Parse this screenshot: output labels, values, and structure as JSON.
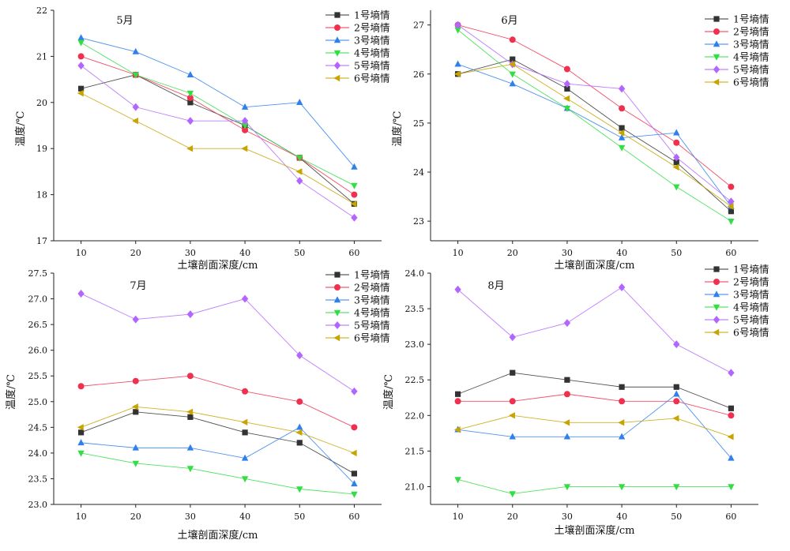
{
  "chart_data": [
    {
      "type": "line",
      "title": "5月",
      "xlabel": "土壤剖面深度/cm",
      "ylabel": "温度/℃",
      "x": [
        10,
        20,
        30,
        40,
        50,
        60
      ],
      "ylim": [
        17,
        22
      ],
      "yticks": [
        "17",
        "18",
        "19",
        "20",
        "21",
        "22"
      ],
      "legend_position": "top-right",
      "series": [
        {
          "name": "1号墒情",
          "color": "#333333",
          "marker": "square",
          "values": [
            20.3,
            20.6,
            20.0,
            19.5,
            18.8,
            17.8
          ]
        },
        {
          "name": "2号墒情",
          "color": "#f0304f",
          "marker": "circle",
          "values": [
            21.0,
            20.6,
            20.1,
            19.4,
            18.8,
            18.0
          ]
        },
        {
          "name": "3号墒情",
          "color": "#2f80ed",
          "marker": "triangle-up",
          "values": [
            21.4,
            21.1,
            20.6,
            19.9,
            20.0,
            18.6
          ]
        },
        {
          "name": "4号墒情",
          "color": "#33dd44",
          "marker": "triangle-down",
          "values": [
            21.3,
            20.6,
            20.2,
            19.5,
            18.8,
            18.2
          ]
        },
        {
          "name": "5号墒情",
          "color": "#b266ff",
          "marker": "diamond",
          "values": [
            20.8,
            19.9,
            19.6,
            19.6,
            18.3,
            17.5
          ]
        },
        {
          "name": "6号墒情",
          "color": "#c8a400",
          "marker": "triangle-left",
          "values": [
            20.2,
            19.6,
            19.0,
            19.0,
            18.5,
            17.8
          ]
        }
      ]
    },
    {
      "type": "line",
      "title": "6月",
      "xlabel": "土壤剖面深度/cm",
      "ylabel": "温度/℃",
      "x": [
        10,
        20,
        30,
        40,
        50,
        60
      ],
      "ylim": [
        22.6,
        27.3
      ],
      "yticks": [
        "23",
        "24",
        "25",
        "26",
        "27"
      ],
      "legend_position": "top-right",
      "series": [
        {
          "name": "1号墒情",
          "color": "#333333",
          "marker": "square",
          "values": [
            26.0,
            26.3,
            25.7,
            24.9,
            24.2,
            23.2
          ]
        },
        {
          "name": "2号墒情",
          "color": "#f0304f",
          "marker": "circle",
          "values": [
            27.0,
            26.7,
            26.1,
            25.3,
            24.6,
            23.7
          ]
        },
        {
          "name": "3号墒情",
          "color": "#2f80ed",
          "marker": "triangle-up",
          "values": [
            26.2,
            25.8,
            25.3,
            24.7,
            24.8,
            23.3
          ]
        },
        {
          "name": "4号墒情",
          "color": "#33dd44",
          "marker": "triangle-down",
          "values": [
            26.9,
            26.0,
            25.3,
            24.5,
            23.7,
            23.0
          ]
        },
        {
          "name": "5号墒情",
          "color": "#b266ff",
          "marker": "diamond",
          "values": [
            27.0,
            26.2,
            25.8,
            25.7,
            24.3,
            23.4
          ]
        },
        {
          "name": "6号墒情",
          "color": "#c8a400",
          "marker": "triangle-left",
          "values": [
            26.0,
            26.2,
            25.5,
            24.8,
            24.1,
            23.3
          ]
        }
      ]
    },
    {
      "type": "line",
      "title": "7月",
      "xlabel": "土壤剖面深度/cm",
      "ylabel": "温度/℃",
      "x": [
        10,
        20,
        30,
        40,
        50,
        60
      ],
      "ylim": [
        23.0,
        27.5
      ],
      "yticks": [
        "23.0",
        "23.5",
        "24.0",
        "24.5",
        "25.0",
        "25.5",
        "26.0",
        "26.5",
        "27.0",
        "27.5"
      ],
      "legend_position": "top-right",
      "series": [
        {
          "name": "1号墒情",
          "color": "#333333",
          "marker": "square",
          "values": [
            24.4,
            24.8,
            24.7,
            24.4,
            24.2,
            23.6
          ]
        },
        {
          "name": "2号墒情",
          "color": "#f0304f",
          "marker": "circle",
          "values": [
            25.3,
            25.4,
            25.5,
            25.2,
            25.0,
            24.5
          ]
        },
        {
          "name": "3号墒情",
          "color": "#2f80ed",
          "marker": "triangle-up",
          "values": [
            24.2,
            24.1,
            24.1,
            23.9,
            24.5,
            23.4
          ]
        },
        {
          "name": "4号墒情",
          "color": "#33dd44",
          "marker": "triangle-down",
          "values": [
            24.0,
            23.8,
            23.7,
            23.5,
            23.3,
            23.2
          ]
        },
        {
          "name": "5号墒情",
          "color": "#b266ff",
          "marker": "diamond",
          "values": [
            27.1,
            26.6,
            26.7,
            27.0,
            25.9,
            25.2
          ]
        },
        {
          "name": "6号墒情",
          "color": "#c8a400",
          "marker": "triangle-left",
          "values": [
            24.5,
            24.9,
            24.8,
            24.6,
            24.4,
            24.0
          ]
        }
      ]
    },
    {
      "type": "line",
      "title": "8月",
      "xlabel": "土壤剖面深度/cm",
      "ylabel": "温度/℃",
      "x": [
        10,
        20,
        30,
        40,
        50,
        60
      ],
      "ylim": [
        20.75,
        24.0
      ],
      "yticks": [
        "21.0",
        "21.5",
        "22.0",
        "22.5",
        "23.0",
        "23.5",
        "24.0"
      ],
      "legend_position": "top-right",
      "series": [
        {
          "name": "1号墒情",
          "color": "#333333",
          "marker": "square",
          "values": [
            22.3,
            22.6,
            22.5,
            22.4,
            22.4,
            22.1
          ]
        },
        {
          "name": "2号墒情",
          "color": "#f0304f",
          "marker": "circle",
          "values": [
            22.2,
            22.2,
            22.3,
            22.2,
            22.2,
            22.0
          ]
        },
        {
          "name": "3号墒情",
          "color": "#2f80ed",
          "marker": "triangle-up",
          "values": [
            21.8,
            21.7,
            21.7,
            21.7,
            22.3,
            21.4
          ]
        },
        {
          "name": "4号墒情",
          "color": "#33dd44",
          "marker": "triangle-down",
          "values": [
            21.1,
            20.9,
            21.0,
            21.0,
            21.0,
            21.0
          ]
        },
        {
          "name": "5号墒情",
          "color": "#b266ff",
          "marker": "diamond",
          "values": [
            23.77,
            23.1,
            23.3,
            23.8,
            23.0,
            22.6
          ]
        },
        {
          "name": "6号墒情",
          "color": "#c8a400",
          "marker": "triangle-left",
          "values": [
            21.8,
            22.0,
            21.9,
            21.9,
            21.96,
            21.7
          ]
        }
      ]
    }
  ]
}
